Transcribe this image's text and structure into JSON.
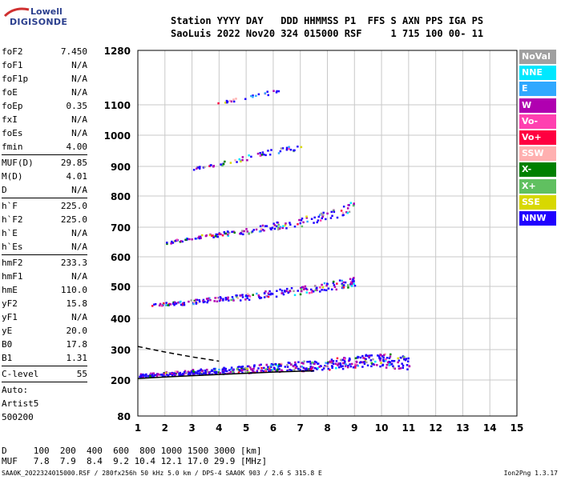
{
  "logo": {
    "line1": "Lowell",
    "line2": "DIGISONDE"
  },
  "header": {
    "line1": "Station YYYY DAY   DDD HHMMSS P1  FFS S AXN PPS IGA PS",
    "line2": "SaoLuis 2022 Nov20 324 015000 RSF     1 715 100 00- 11"
  },
  "params": [
    {
      "name": "foF2",
      "value": "7.450"
    },
    {
      "name": "foF1",
      "value": "N/A"
    },
    {
      "name": "foF1p",
      "value": "N/A"
    },
    {
      "name": "foE",
      "value": "N/A"
    },
    {
      "name": "foEp",
      "value": "0.35"
    },
    {
      "name": "fxI",
      "value": "N/A"
    },
    {
      "name": "foEs",
      "value": "N/A"
    },
    {
      "name": "fmin",
      "value": "4.00"
    },
    {
      "sep": true
    },
    {
      "name": "MUF(D)",
      "value": "29.85"
    },
    {
      "name": "M(D)",
      "value": "4.01"
    },
    {
      "name": "D",
      "value": "N/A"
    },
    {
      "sep": true
    },
    {
      "name": "h`F",
      "value": "225.0"
    },
    {
      "name": "h`F2",
      "value": "225.0"
    },
    {
      "name": "h`E",
      "value": "N/A"
    },
    {
      "name": "h`Es",
      "value": "N/A"
    },
    {
      "sep": true
    },
    {
      "name": "hmF2",
      "value": "233.3"
    },
    {
      "name": "hmF1",
      "value": "N/A"
    },
    {
      "name": "hmE",
      "value": "110.0"
    },
    {
      "name": "yF2",
      "value": "15.8"
    },
    {
      "name": "yF1",
      "value": "N/A"
    },
    {
      "name": "yE",
      "value": "20.0"
    },
    {
      "name": "B0",
      "value": "17.8"
    },
    {
      "name": "B1",
      "value": "1.31"
    },
    {
      "sep": true
    },
    {
      "name": "C-level",
      "value": "55"
    },
    {
      "sep": true
    },
    {
      "name": "Auto:",
      "value": ""
    },
    {
      "name": "Artist5",
      "value": ""
    },
    {
      "name": "500200",
      "value": ""
    }
  ],
  "legend": [
    {
      "label": "NoVal",
      "color": "#a0a0a0"
    },
    {
      "label": "NNE",
      "color": "#00e8ff"
    },
    {
      "label": "E",
      "color": "#30a8ff"
    },
    {
      "label": "W",
      "color": "#b000b0"
    },
    {
      "label": "Vo-",
      "color": "#ff40b0"
    },
    {
      "label": "Vo+",
      "color": "#ff0040"
    },
    {
      "label": "SSW",
      "color": "#ffb0b0"
    },
    {
      "label": "X-",
      "color": "#008000"
    },
    {
      "label": "X+",
      "color": "#60c060"
    },
    {
      "label": "SSE",
      "color": "#d8d800"
    },
    {
      "label": "NNW",
      "color": "#2000ff"
    }
  ],
  "footer": {
    "line1": "D     100  200  400  600  800 1000 1500 3000 [km]",
    "line2": "MUF   7.8  7.9  8.4  9.2 10.4 12.1 17.0 29.9 [MHz]",
    "bottom": "SAA0K_2022324015000.RSF / 280fx256h 50 kHz 5.0 km / DPS-4 SAA0K 903 / 2.6 S 315.8 E",
    "version": "Ion2Png 1.3.17"
  },
  "chart_data": {
    "type": "scatter",
    "title": "",
    "xlabel": "",
    "ylabel": "",
    "x_ticks": [
      1,
      2,
      3,
      4,
      5,
      6,
      7,
      8,
      9,
      10,
      11,
      12,
      13,
      14,
      15
    ],
    "y_ticks": [
      80,
      200,
      300,
      400,
      500,
      600,
      700,
      800,
      900,
      1000,
      1100,
      1280
    ],
    "xlim": [
      1,
      15
    ],
    "ylim": [
      80,
      1280
    ],
    "y_scale": "nonlinear (stretched near the bottom)",
    "grid": true,
    "traces": [
      {
        "name": "",
        "description": "F-layer trace",
        "x": [
          1.0,
          2.0,
          3.0,
          4.0,
          5.0,
          6.0,
          7.0,
          8.0,
          9.0,
          10.0,
          11.0
        ],
        "y": [
          218,
          222,
          228,
          232,
          238,
          244,
          248,
          253,
          262,
          268,
          258
        ]
      },
      {
        "name": "",
        "description": "2nd hop",
        "x": [
          1.5,
          2.5,
          3.5,
          4.5,
          5.5,
          6.5,
          7.5,
          8.5,
          9.0
        ],
        "y": [
          445,
          450,
          458,
          465,
          475,
          485,
          495,
          510,
          520
        ]
      },
      {
        "name": "",
        "description": "3rd hop",
        "x": [
          2.0,
          3.0,
          4.0,
          5.0,
          6.0,
          7.0,
          8.0,
          9.0
        ],
        "y": [
          650,
          665,
          678,
          690,
          705,
          720,
          740,
          770
        ]
      },
      {
        "name": "",
        "description": "4th hop",
        "x": [
          3.0,
          4.0,
          5.0,
          6.0,
          7.0
        ],
        "y": [
          895,
          910,
          930,
          950,
          965
        ]
      },
      {
        "name": "",
        "description": "5th hop",
        "x": [
          3.8,
          4.5,
          5.5,
          6.5
        ],
        "y": [
          1105,
          1120,
          1135,
          1155
        ]
      }
    ],
    "fitted_curves": [
      {
        "x": [
          1.0,
          2.0,
          3.0,
          4.0,
          5.0,
          6.0,
          7.0,
          7.5
        ],
        "y": [
          205,
          210,
          214,
          218,
          222,
          226,
          229,
          230
        ]
      },
      {
        "x": [
          1.0,
          2.0,
          3.0,
          4.0
        ],
        "y": [
          310,
          292,
          276,
          262
        ]
      }
    ],
    "legend_position": "right"
  }
}
